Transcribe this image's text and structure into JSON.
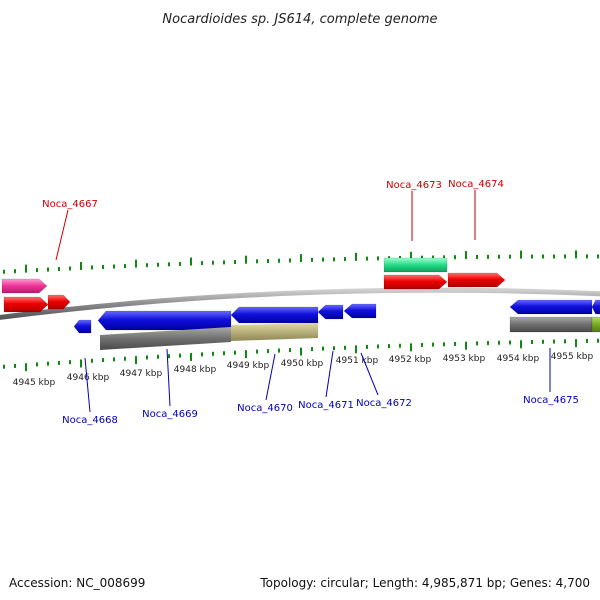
{
  "title": "Nocardioides sp. JS614, complete genome",
  "footer": {
    "accession": "Accession: NC_008699",
    "summary": "Topology: circular; Length: 4,985,871 bp; Genes: 4,700"
  },
  "kbp_labels": [
    "4945 kbp",
    "4946 kbp",
    "4947 kbp",
    "4948 kbp",
    "4949 kbp",
    "4950 kbp",
    "4951 kbp",
    "4952 kbp",
    "4953 kbp",
    "4954 kbp",
    "4955 kbp"
  ],
  "gene_labels_top": [
    "Noca_4667",
    "Noca_4673",
    "Noca_4674"
  ],
  "gene_labels_bottom": [
    "Noca_4668",
    "Noca_4669",
    "Noca_4670",
    "Noca_4671",
    "Noca_4672",
    "Noca_4675"
  ],
  "colors": {
    "forward_cds": "#ee0000",
    "reverse_cds": "#0000dd",
    "pink_feature": "#ee3399",
    "green_feature": "#22dd88",
    "gray_feature": "#707070",
    "khaki_feature": "#b8b07a",
    "olive_feature": "#77aa22",
    "backbone": "#8a8a8a",
    "ticks": "#118811",
    "top_label": "#cc0000",
    "bottom_label": "#0000bb"
  }
}
